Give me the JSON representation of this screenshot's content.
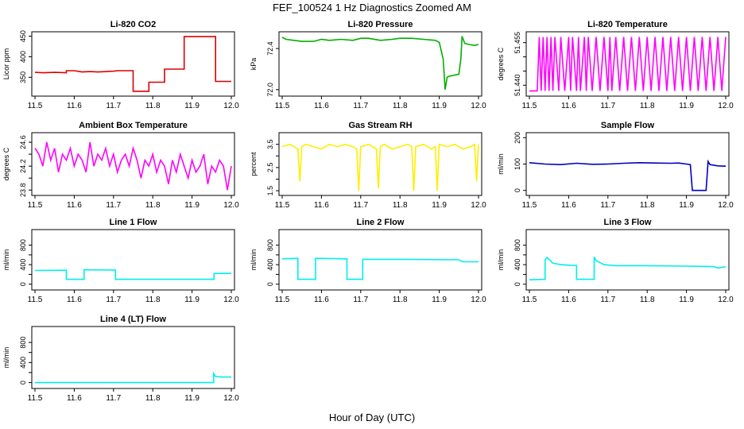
{
  "figure": {
    "title": "FEF_100524  1 Hz Diagnostics Zoomed AM",
    "xlabel": "Hour of Day (UTC)"
  },
  "chart_data": [
    {
      "type": "line",
      "title": "Li-820 CO2",
      "ylabel": "Licor ppm",
      "color": "#dd0000",
      "xlim": [
        11.5,
        12.0
      ],
      "ylim": [
        310,
        455
      ],
      "yticks": [
        350,
        400,
        450
      ],
      "xticks": [
        11.5,
        11.6,
        11.7,
        11.8,
        11.9,
        12.0
      ],
      "series": [
        {
          "x": [
            11.5,
            11.52,
            11.55,
            11.58,
            11.58,
            11.6,
            11.62,
            11.64,
            11.66,
            11.68,
            11.7,
            11.71,
            11.71,
            11.75,
            11.75,
            11.79,
            11.79,
            11.83,
            11.83,
            11.88,
            11.88,
            11.96,
            11.96,
            12.0
          ],
          "y": [
            362,
            361,
            362,
            361,
            366,
            366,
            363,
            364,
            363,
            364,
            365,
            366,
            366,
            366,
            316,
            316,
            338,
            338,
            370,
            370,
            449,
            449,
            340,
            340
          ]
        }
      ]
    },
    {
      "type": "line",
      "title": "Li-820 Pressure",
      "ylabel": "kPa",
      "color": "#00b000",
      "xlim": [
        11.5,
        12.0
      ],
      "ylim": [
        71.96,
        72.54
      ],
      "yticks": [
        72.0,
        72.4
      ],
      "yticklabels": [
        "72.0",
        "72.4"
      ],
      "xticks": [
        11.5,
        11.6,
        11.7,
        11.8,
        11.9,
        12.0
      ],
      "series": [
        {
          "x": [
            11.5,
            11.51,
            11.53,
            11.55,
            11.58,
            11.6,
            11.62,
            11.65,
            11.68,
            11.7,
            11.72,
            11.75,
            11.78,
            11.8,
            11.83,
            11.86,
            11.89,
            11.9,
            11.91,
            11.915,
            11.92,
            11.925,
            11.95,
            11.955,
            11.958,
            11.965,
            11.975,
            11.99,
            12.0
          ],
          "y": [
            72.51,
            72.49,
            72.48,
            72.47,
            72.47,
            72.49,
            72.48,
            72.49,
            72.48,
            72.5,
            72.5,
            72.48,
            72.49,
            72.5,
            72.5,
            72.49,
            72.48,
            72.46,
            72.3,
            72.0,
            72.12,
            72.13,
            72.15,
            72.3,
            72.52,
            72.45,
            72.44,
            72.43,
            72.44
          ]
        }
      ]
    },
    {
      "type": "line",
      "title": "Li-820 Temperature",
      "ylabel": "degrees C",
      "color": "#ff00ff",
      "xlim": [
        11.5,
        12.0
      ],
      "ylim": [
        51.437,
        51.458
      ],
      "yticks": [
        51.44,
        51.445,
        51.45,
        51.455
      ],
      "yticklabels": [
        "51.440",
        "",
        "",
        "51.455"
      ],
      "xticks": [
        11.5,
        11.6,
        11.7,
        11.8,
        11.9,
        12.0
      ],
      "series": [
        {
          "x": [
            11.5,
            11.52,
            11.525,
            11.53,
            11.535,
            11.54,
            11.545,
            11.55,
            11.555,
            11.56,
            11.565,
            11.575,
            11.58,
            11.59,
            11.6,
            11.605,
            11.61,
            11.62,
            11.625,
            11.63,
            11.64,
            11.645,
            11.65,
            11.66,
            11.67,
            11.68,
            11.69,
            11.7,
            11.705,
            11.71,
            11.72,
            11.73,
            11.74,
            11.75,
            11.76,
            11.77,
            11.78,
            11.79,
            11.8,
            11.81,
            11.82,
            11.83,
            11.84,
            11.85,
            11.86,
            11.87,
            11.88,
            11.89,
            11.9,
            11.91,
            11.92,
            11.93,
            11.94,
            11.95,
            11.96,
            11.97,
            11.98,
            11.99,
            12.0
          ],
          "y": [
            51.438,
            51.438,
            51.457,
            51.438,
            51.457,
            51.438,
            51.457,
            51.438,
            51.457,
            51.438,
            51.457,
            51.438,
            51.457,
            51.438,
            51.457,
            51.438,
            51.457,
            51.438,
            51.457,
            51.438,
            51.457,
            51.438,
            51.457,
            51.438,
            51.457,
            51.438,
            51.457,
            51.438,
            51.457,
            51.438,
            51.457,
            51.438,
            51.457,
            51.438,
            51.457,
            51.438,
            51.457,
            51.438,
            51.457,
            51.438,
            51.457,
            51.438,
            51.457,
            51.438,
            51.457,
            51.438,
            51.457,
            51.438,
            51.457,
            51.438,
            51.457,
            51.438,
            51.457,
            51.438,
            51.457,
            51.438,
            51.457,
            51.438,
            51.457
          ]
        }
      ]
    },
    {
      "type": "line",
      "title": "Ambient Box Temperature",
      "ylabel": "degrees C",
      "color": "#ff00ff",
      "xlim": [
        11.5,
        12.0
      ],
      "ylim": [
        23.75,
        24.72
      ],
      "yticks": [
        23.8,
        24.0,
        24.2,
        24.4,
        24.6
      ],
      "yticklabels": [
        "23.8",
        "",
        "24.2",
        "",
        "24.6"
      ],
      "xticks": [
        11.5,
        11.6,
        11.7,
        11.8,
        11.9,
        12.0
      ],
      "series": [
        {
          "x": [
            11.5,
            11.51,
            11.52,
            11.53,
            11.54,
            11.55,
            11.56,
            11.57,
            11.58,
            11.59,
            11.6,
            11.61,
            11.62,
            11.63,
            11.64,
            11.65,
            11.66,
            11.67,
            11.68,
            11.69,
            11.7,
            11.71,
            11.72,
            11.73,
            11.74,
            11.75,
            11.76,
            11.77,
            11.78,
            11.79,
            11.8,
            11.81,
            11.82,
            11.83,
            11.84,
            11.85,
            11.86,
            11.87,
            11.88,
            11.89,
            11.9,
            11.91,
            11.92,
            11.93,
            11.94,
            11.95,
            11.96,
            11.97,
            11.98,
            11.99,
            12.0
          ],
          "y": [
            24.5,
            24.4,
            24.2,
            24.6,
            24.3,
            24.5,
            24.1,
            24.4,
            24.3,
            24.5,
            24.2,
            24.4,
            24.3,
            24.1,
            24.6,
            24.2,
            24.4,
            24.3,
            24.5,
            24.2,
            24.4,
            24.1,
            24.3,
            24.4,
            24.2,
            24.5,
            24.3,
            24.0,
            24.3,
            24.2,
            24.4,
            24.1,
            24.3,
            24.2,
            23.9,
            24.3,
            24.1,
            24.4,
            24.2,
            24.0,
            24.3,
            24.1,
            24.2,
            24.4,
            23.9,
            24.2,
            24.1,
            24.3,
            24.2,
            23.8,
            24.2
          ]
        }
      ]
    },
    {
      "type": "line",
      "title": "Gas Stream RH",
      "ylabel": "percent",
      "color": "#ffee00",
      "xlim": [
        11.5,
        12.0
      ],
      "ylim": [
        1.4,
        3.9
      ],
      "yticks": [
        1.5,
        2.0,
        2.5,
        3.0,
        3.5
      ],
      "yticklabels": [
        "1.5",
        "",
        "2.5",
        "",
        "3.5"
      ],
      "xticks": [
        11.5,
        11.6,
        11.7,
        11.8,
        11.9,
        12.0
      ],
      "series": [
        {
          "x": [
            11.5,
            11.52,
            11.54,
            11.545,
            11.55,
            11.56,
            11.58,
            11.6,
            11.62,
            11.64,
            11.66,
            11.68,
            11.69,
            11.695,
            11.7,
            11.72,
            11.74,
            11.745,
            11.75,
            11.76,
            11.78,
            11.8,
            11.82,
            11.83,
            11.835,
            11.84,
            11.86,
            11.88,
            11.89,
            11.895,
            11.9,
            11.92,
            11.94,
            11.96,
            11.98,
            11.99,
            11.995,
            12.0
          ],
          "y": [
            3.4,
            3.5,
            3.3,
            1.9,
            3.4,
            3.5,
            3.4,
            3.3,
            3.5,
            3.4,
            3.5,
            3.4,
            3.3,
            1.5,
            3.4,
            3.5,
            3.3,
            1.6,
            3.4,
            3.5,
            3.3,
            3.4,
            3.5,
            3.4,
            1.5,
            3.4,
            3.5,
            3.3,
            3.4,
            1.5,
            3.5,
            3.4,
            3.5,
            3.3,
            3.4,
            3.5,
            1.9,
            3.5
          ]
        }
      ]
    },
    {
      "type": "line",
      "title": "Sample Flow",
      "ylabel": "ml/min",
      "color": "#0000bb",
      "xlim": [
        11.5,
        12.0
      ],
      "ylim": [
        -10,
        210
      ],
      "yticks": [
        0,
        100,
        200
      ],
      "xticks": [
        11.5,
        11.6,
        11.7,
        11.8,
        11.9,
        12.0
      ],
      "series": [
        {
          "x": [
            11.5,
            11.54,
            11.58,
            11.62,
            11.66,
            11.7,
            11.74,
            11.78,
            11.82,
            11.86,
            11.88,
            11.9,
            11.91,
            11.915,
            11.95,
            11.955,
            11.96,
            11.98,
            12.0
          ],
          "y": [
            105,
            100,
            98,
            103,
            99,
            100,
            103,
            105,
            104,
            103,
            104,
            100,
            98,
            0,
            0,
            110,
            98,
            93,
            92
          ]
        }
      ]
    },
    {
      "type": "line",
      "title": "Line 1 Flow",
      "ylabel": "ml/min",
      "color": "#00eeee",
      "xlim": [
        11.5,
        12.0
      ],
      "ylim": [
        -70,
        1070
      ],
      "yticks": [
        0,
        200,
        400,
        600,
        800
      ],
      "yticklabels": [
        "0",
        "",
        "400",
        "",
        "800"
      ],
      "xticks": [
        11.5,
        11.6,
        11.7,
        11.8,
        11.9,
        12.0
      ],
      "series": [
        {
          "x": [
            11.5,
            11.58,
            11.58,
            11.625,
            11.625,
            11.705,
            11.705,
            11.956,
            11.956,
            12.0
          ],
          "y": [
            280,
            285,
            100,
            100,
            295,
            290,
            100,
            100,
            220,
            220
          ]
        }
      ]
    },
    {
      "type": "line",
      "title": "Line 2 Flow",
      "ylabel": "ml/min",
      "color": "#00eeee",
      "xlim": [
        11.5,
        12.0
      ],
      "ylim": [
        -70,
        1070
      ],
      "yticks": [
        0,
        200,
        400,
        600,
        800
      ],
      "yticklabels": [
        "0",
        "",
        "400",
        "",
        "800"
      ],
      "xticks": [
        11.5,
        11.6,
        11.7,
        11.8,
        11.9,
        12.0
      ],
      "series": [
        {
          "x": [
            11.5,
            11.54,
            11.54,
            11.585,
            11.585,
            11.665,
            11.665,
            11.705,
            11.705,
            11.8,
            11.95,
            11.96,
            12.0
          ],
          "y": [
            520,
            530,
            100,
            100,
            530,
            520,
            100,
            100,
            510,
            510,
            500,
            460,
            460
          ]
        }
      ]
    },
    {
      "type": "line",
      "title": "Line 3 Flow",
      "ylabel": "ml/min",
      "color": "#00eeee",
      "xlim": [
        11.5,
        12.0
      ],
      "ylim": [
        -70,
        1070
      ],
      "yticks": [
        0,
        200,
        400,
        600,
        800
      ],
      "yticklabels": [
        "0",
        "",
        "400",
        "",
        "800"
      ],
      "xticks": [
        11.5,
        11.6,
        11.7,
        11.8,
        11.9,
        12.0
      ],
      "series": [
        {
          "x": [
            11.5,
            11.54,
            11.54,
            11.545,
            11.56,
            11.58,
            11.6,
            11.62,
            11.62,
            11.665,
            11.665,
            11.67,
            11.69,
            11.72,
            11.8,
            11.9,
            11.97,
            11.98,
            12.0
          ],
          "y": [
            90,
            100,
            500,
            550,
            430,
            400,
            390,
            385,
            100,
            100,
            560,
            480,
            400,
            380,
            380,
            370,
            360,
            330,
            360
          ]
        }
      ]
    },
    {
      "type": "line",
      "title": "Line 4 (LT) Flow",
      "ylabel": "ml/min",
      "color": "#00eeee",
      "xlim": [
        11.5,
        12.0
      ],
      "ylim": [
        -70,
        1070
      ],
      "yticks": [
        0,
        200,
        400,
        600,
        800
      ],
      "yticklabels": [
        "0",
        "",
        "400",
        "",
        "800"
      ],
      "xticks": [
        11.5,
        11.6,
        11.7,
        11.8,
        11.9,
        12.0
      ],
      "series": [
        {
          "x": [
            11.5,
            11.7,
            11.955,
            11.955,
            11.96,
            11.98,
            12.0
          ],
          "y": [
            0,
            0,
            0,
            180,
            120,
            110,
            110
          ]
        }
      ]
    }
  ]
}
